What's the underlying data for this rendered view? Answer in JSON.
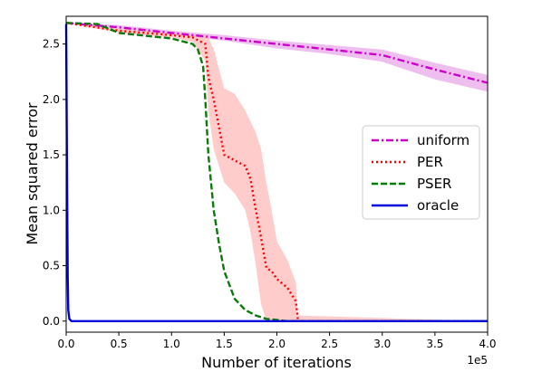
{
  "chart_data": {
    "type": "line",
    "title": "",
    "xlabel": "Number of iterations",
    "ylabel": "Mean squared error",
    "x_offset_label": "1e5",
    "xlim": [
      0,
      4.0
    ],
    "ylim": [
      -0.1,
      2.75
    ],
    "xticks": [
      "0.0",
      "0.5",
      "1.0",
      "1.5",
      "2.0",
      "2.5",
      "3.0",
      "3.5",
      "4.0"
    ],
    "yticks": [
      "0.0",
      "0.5",
      "1.0",
      "1.5",
      "2.0",
      "2.5"
    ],
    "legend_position": "center-right",
    "series": [
      {
        "name": "uniform",
        "color": "#cc00cc",
        "dash": "dashdot",
        "band_color": "#e8a8e8",
        "x": [
          0,
          0.5,
          1.0,
          1.5,
          2.0,
          2.5,
          3.0,
          3.5,
          4.0
        ],
        "y": [
          2.69,
          2.65,
          2.6,
          2.55,
          2.5,
          2.45,
          2.4,
          2.27,
          2.15
        ],
        "upper": [
          2.69,
          2.67,
          2.62,
          2.58,
          2.53,
          2.49,
          2.45,
          2.33,
          2.22
        ],
        "lower": [
          2.69,
          2.64,
          2.58,
          2.53,
          2.46,
          2.41,
          2.34,
          2.18,
          2.07
        ]
      },
      {
        "name": "PER",
        "color": "#ff0000",
        "dash": "dotted",
        "band_color": "#ffbbbb",
        "x": [
          0,
          0.5,
          1.0,
          1.2,
          1.32,
          1.35,
          1.4,
          1.5,
          1.6,
          1.7,
          1.75,
          1.8,
          1.85,
          1.9,
          1.95,
          2.0,
          2.1,
          2.18,
          2.2,
          4.0
        ],
        "y": [
          2.69,
          2.62,
          2.58,
          2.56,
          2.5,
          2.2,
          2.0,
          1.5,
          1.45,
          1.4,
          1.28,
          1.0,
          0.75,
          0.48,
          0.45,
          0.38,
          0.3,
          0.18,
          0.0,
          0.0
        ],
        "upper": [
          2.69,
          2.64,
          2.6,
          2.59,
          2.58,
          2.56,
          2.45,
          2.1,
          2.05,
          1.9,
          1.8,
          1.7,
          1.55,
          1.25,
          1.0,
          0.72,
          0.55,
          0.35,
          0.05,
          0.0
        ],
        "lower": [
          2.69,
          2.6,
          2.56,
          2.52,
          2.35,
          1.9,
          1.55,
          1.25,
          1.15,
          1.0,
          0.8,
          0.5,
          0.15,
          0.0,
          0.0,
          0.0,
          0.0,
          0.0,
          0.0,
          0.0
        ]
      },
      {
        "name": "PSER",
        "color": "#0a7a0a",
        "dash": "dashed",
        "x": [
          0,
          0.3,
          0.5,
          1.0,
          1.2,
          1.25,
          1.3,
          1.32,
          1.35,
          1.4,
          1.45,
          1.5,
          1.6,
          1.7,
          1.8,
          1.9,
          2.0,
          2.1,
          4.0
        ],
        "y": [
          2.69,
          2.68,
          2.6,
          2.55,
          2.5,
          2.45,
          2.3,
          2.0,
          1.5,
          1.0,
          0.7,
          0.45,
          0.2,
          0.1,
          0.05,
          0.02,
          0.01,
          0.0,
          0.0
        ]
      },
      {
        "name": "oracle",
        "color": "#0000dd",
        "dash": "solid",
        "x": [
          0,
          0.005,
          0.01,
          0.015,
          0.02,
          0.03,
          0.05,
          0.1,
          4.0
        ],
        "y": [
          2.68,
          1.8,
          1.0,
          0.4,
          0.1,
          0.02,
          0.0,
          0.0,
          0.0
        ]
      }
    ]
  }
}
